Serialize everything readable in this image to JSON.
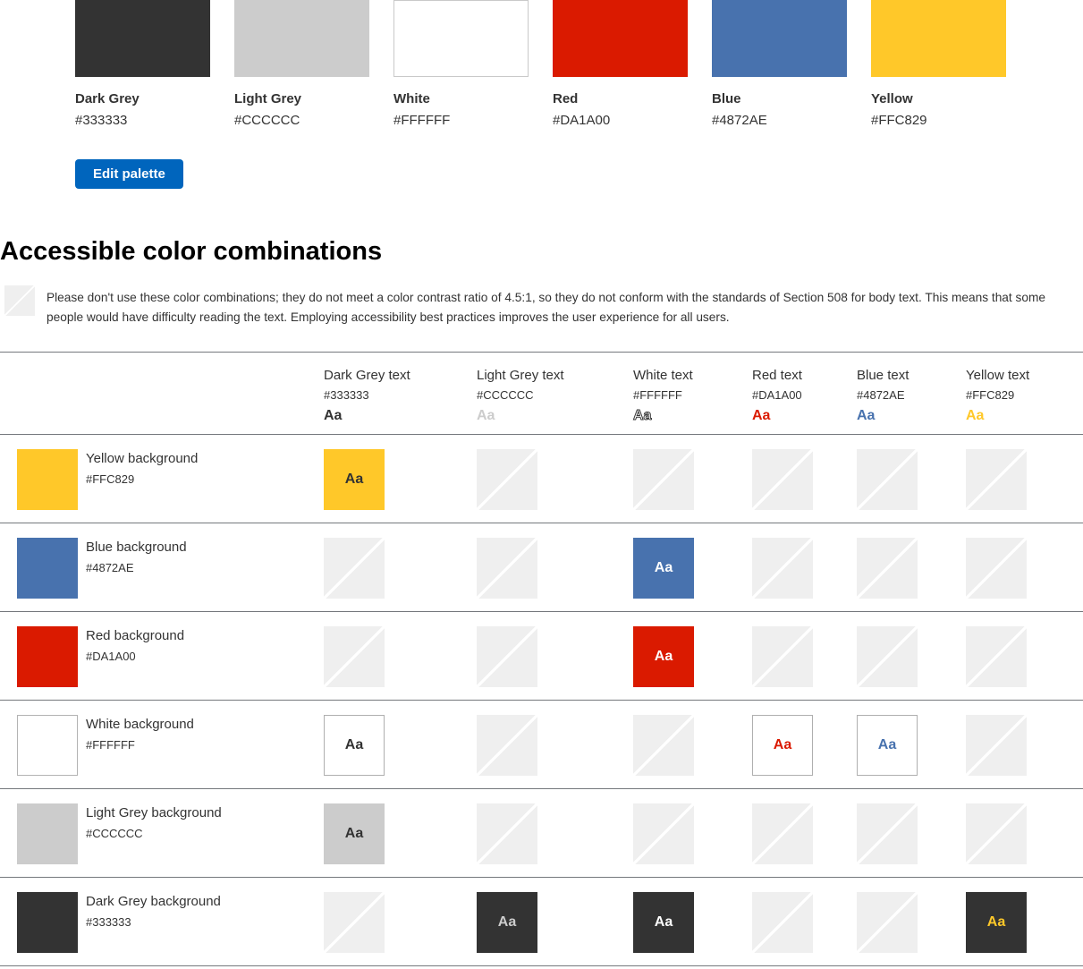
{
  "colors": {
    "accent_blue": "#0065BD",
    "hatch_grey": "#EFEFEF",
    "rule_grey": "#75787D",
    "tile_border_grey": "#AFAFAF"
  },
  "icons": {
    "not_accessible": "diagonal-striped-square"
  },
  "palette": {
    "swatches": [
      {
        "name": "Dark Grey",
        "hex": "#333333"
      },
      {
        "name": "Light Grey",
        "hex": "#CCCCCC"
      },
      {
        "name": "White",
        "hex": "#FFFFFF"
      },
      {
        "name": "Red",
        "hex": "#DA1A00"
      },
      {
        "name": "Blue",
        "hex": "#4872AE"
      },
      {
        "name": "Yellow",
        "hex": "#FFC829"
      }
    ],
    "edit_button_label": "Edit palette"
  },
  "section": {
    "heading": "Accessible color combinations",
    "note": "Please don't use these color combinations; they do not meet a color contrast ratio of 4.5:1, so they do not conform with the standards of Section 508 for body text. This means that some people would have difficulty reading the text. Employing accessibility best practices improves the user experience for all users."
  },
  "matrix": {
    "sample_text": "Aa",
    "columns": [
      {
        "label": "Dark Grey text",
        "hex": "#333333"
      },
      {
        "label": "Light Grey text",
        "hex": "#CCCCCC"
      },
      {
        "label": "White text",
        "hex": "#FFFFFF",
        "outlined": true
      },
      {
        "label": "Red text",
        "hex": "#DA1A00"
      },
      {
        "label": "Blue text",
        "hex": "#4872AE"
      },
      {
        "label": "Yellow text",
        "hex": "#FFC829"
      }
    ],
    "rows": [
      {
        "label": "Yellow background",
        "hex": "#FFC829",
        "cells": [
          "pass",
          "fail",
          "fail",
          "fail",
          "fail",
          "fail"
        ]
      },
      {
        "label": "Blue background",
        "hex": "#4872AE",
        "cells": [
          "fail",
          "fail",
          "pass",
          "fail",
          "fail",
          "fail"
        ]
      },
      {
        "label": "Red background",
        "hex": "#DA1A00",
        "cells": [
          "fail",
          "fail",
          "pass",
          "fail",
          "fail",
          "fail"
        ]
      },
      {
        "label": "White background",
        "hex": "#FFFFFF",
        "cells": [
          "pass",
          "fail",
          "fail",
          "pass",
          "pass",
          "fail"
        ]
      },
      {
        "label": "Light Grey background",
        "hex": "#CCCCCC",
        "cells": [
          "pass",
          "fail",
          "fail",
          "fail",
          "fail",
          "fail"
        ]
      },
      {
        "label": "Dark Grey background",
        "hex": "#333333",
        "cells": [
          "fail",
          "pass",
          "pass",
          "fail",
          "fail",
          "pass"
        ]
      }
    ]
  }
}
